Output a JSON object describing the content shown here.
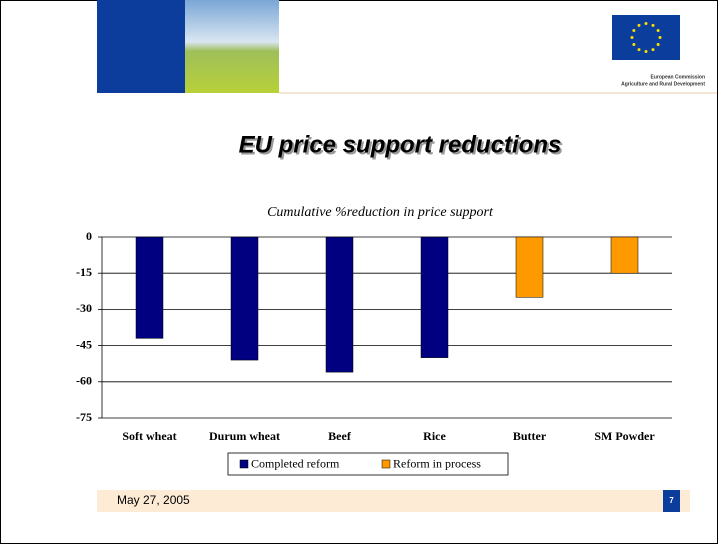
{
  "header": {
    "org_line1": "European Commission",
    "org_line2": "Agriculture and Rural Development"
  },
  "chart_data": {
    "type": "bar",
    "title": "EU price support reductions",
    "subtitle": "Cumulative %reduction in price support",
    "categories": [
      "Soft wheat",
      "Durum wheat",
      "Beef",
      "Rice",
      "Butter",
      "SM Powder"
    ],
    "series": [
      {
        "name": "Completed reform",
        "color": "#000080",
        "values": [
          -42,
          -51,
          -56,
          -50,
          null,
          null
        ]
      },
      {
        "name": "Reform in process",
        "color": "#ff9900",
        "values": [
          null,
          null,
          null,
          null,
          -25,
          -15
        ]
      }
    ],
    "ylim": [
      -75,
      0
    ],
    "yticks": [
      0,
      -15,
      -30,
      -45,
      -60,
      -75
    ],
    "grid": true,
    "legend": "bottom"
  },
  "footer": {
    "date": "May 27, 2005",
    "page": "7"
  }
}
